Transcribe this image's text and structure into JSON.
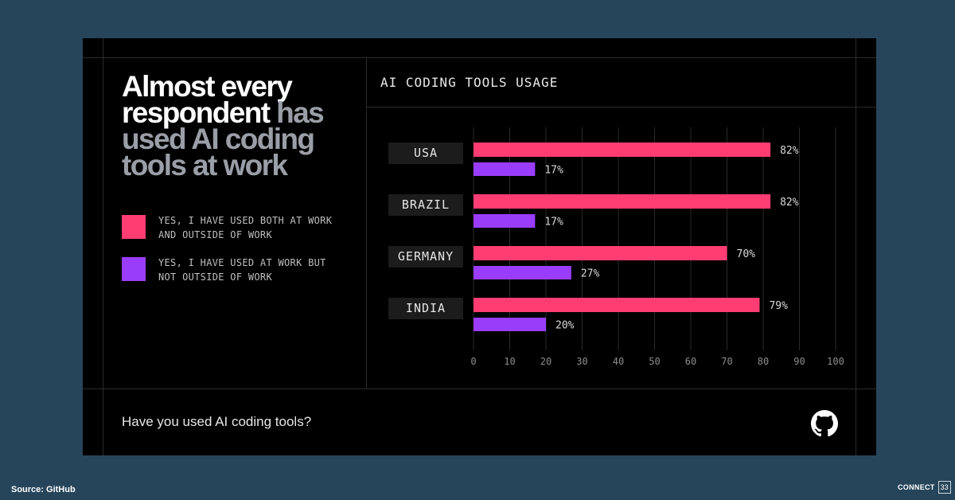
{
  "headline": {
    "white_part": "Almost every respondent",
    "grey_part": "has used AI coding tools at work"
  },
  "legend": [
    {
      "label": "YES, I HAVE USED BOTH AT WORK AND OUTSIDE OF WORK",
      "color": "#ff3d72"
    },
    {
      "label": "YES, I HAVE USED AT WORK BUT NOT OUTSIDE OF WORK",
      "color": "#9a3dfa"
    }
  ],
  "chart_data": {
    "type": "bar",
    "orientation": "horizontal",
    "title": "AI CODING TOOLS USAGE",
    "categories": [
      "USA",
      "BRAZIL",
      "GERMANY",
      "INDIA"
    ],
    "series": [
      {
        "name": "YES, I HAVE USED BOTH AT WORK AND OUTSIDE OF WORK",
        "values": [
          82,
          82,
          70,
          79
        ],
        "color": "#ff3d72"
      },
      {
        "name": "YES, I HAVE USED AT WORK BUT NOT OUTSIDE OF WORK",
        "values": [
          17,
          17,
          27,
          20
        ],
        "color": "#9a3dfa"
      }
    ],
    "value_labels": [
      [
        "82%",
        "82%",
        "70%",
        "79%"
      ],
      [
        "17%",
        "17%",
        "27%",
        "20%"
      ]
    ],
    "xlim": [
      0,
      100
    ],
    "xticks": [
      0,
      10,
      20,
      30,
      40,
      50,
      60,
      70,
      80,
      90,
      100
    ],
    "grid": true
  },
  "footer": {
    "question": "Have you used AI coding tools?"
  },
  "source": "Source: GitHub",
  "brand": {
    "name": "CONNECT",
    "number": "33"
  }
}
